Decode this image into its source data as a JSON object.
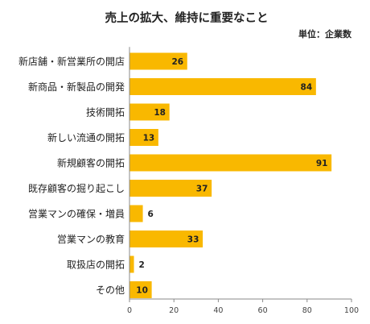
{
  "chart_data": {
    "type": "bar",
    "orientation": "horizontal",
    "title": "売上の拡大、維持に重要なこと",
    "unit_label": "単位：企業数",
    "categories": [
      "新店舗・新営業所の開店",
      "新商品・新製品の開発",
      "技術開拓",
      "新しい流通の開拓",
      "新規顧客の開拓",
      "既存顧客の掘り起こし",
      "営業マンの確保・増員",
      "営業マンの教育",
      "取扱店の開拓",
      "その他"
    ],
    "values": [
      26,
      84,
      18,
      13,
      91,
      37,
      6,
      33,
      2,
      10
    ],
    "xlim": [
      0,
      100
    ],
    "xticks": [
      0,
      20,
      40,
      60,
      80,
      100
    ],
    "grid": false,
    "legend": "none",
    "bar_color": "#F9B800",
    "axis_color": "#8A8A8A"
  }
}
